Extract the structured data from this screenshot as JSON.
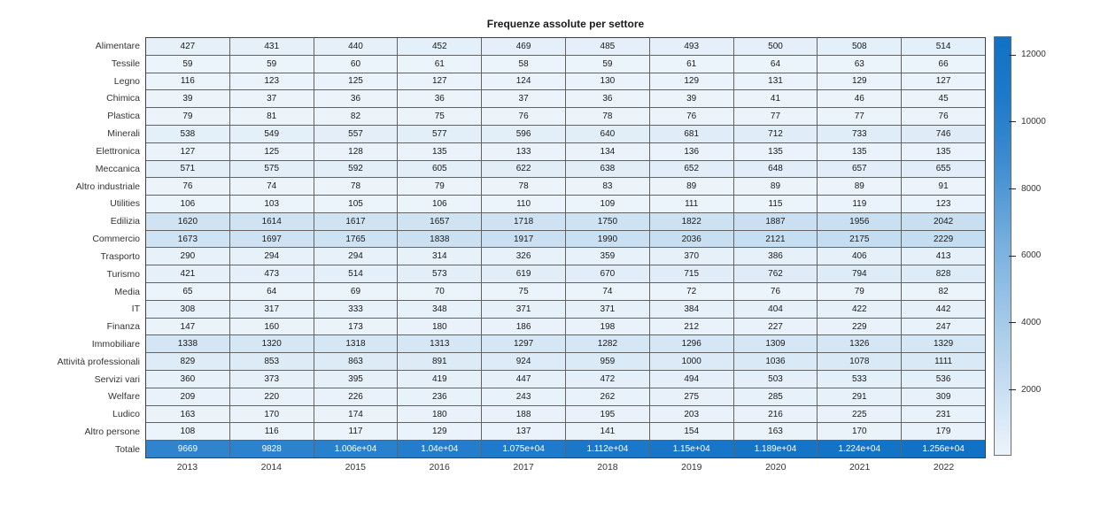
{
  "chart_data": {
    "type": "heatmap",
    "title": "Frequenze assolute per settore",
    "x_categories": [
      "2013",
      "2014",
      "2015",
      "2016",
      "2017",
      "2018",
      "2019",
      "2020",
      "2021",
      "2022"
    ],
    "rows": [
      {
        "label": "Alimentare",
        "values": [
          427,
          431,
          440,
          452,
          469,
          485,
          493,
          500,
          508,
          514
        ]
      },
      {
        "label": "Tessile",
        "values": [
          59,
          59,
          60,
          61,
          58,
          59,
          61,
          64,
          63,
          66
        ]
      },
      {
        "label": "Legno",
        "values": [
          116,
          123,
          125,
          127,
          124,
          130,
          129,
          131,
          129,
          127
        ]
      },
      {
        "label": "Chimica",
        "values": [
          39,
          37,
          36,
          36,
          37,
          36,
          39,
          41,
          46,
          45
        ]
      },
      {
        "label": "Plastica",
        "values": [
          79,
          81,
          82,
          75,
          76,
          78,
          76,
          77,
          77,
          76
        ]
      },
      {
        "label": "Minerali",
        "values": [
          538,
          549,
          557,
          577,
          596,
          640,
          681,
          712,
          733,
          746
        ]
      },
      {
        "label": "Elettronica",
        "values": [
          127,
          125,
          128,
          135,
          133,
          134,
          136,
          135,
          135,
          135
        ]
      },
      {
        "label": "Meccanica",
        "values": [
          571,
          575,
          592,
          605,
          622,
          638,
          652,
          648,
          657,
          655
        ]
      },
      {
        "label": "Altro industriale",
        "values": [
          76,
          74,
          78,
          79,
          78,
          83,
          89,
          89,
          89,
          91
        ]
      },
      {
        "label": "Utilities",
        "values": [
          106,
          103,
          105,
          106,
          110,
          109,
          111,
          115,
          119,
          123
        ]
      },
      {
        "label": "Edilizia",
        "values": [
          1620,
          1614,
          1617,
          1657,
          1718,
          1750,
          1822,
          1887,
          1956,
          2042
        ]
      },
      {
        "label": "Commercio",
        "values": [
          1673,
          1697,
          1765,
          1838,
          1917,
          1990,
          2036,
          2121,
          2175,
          2229
        ]
      },
      {
        "label": "Trasporto",
        "values": [
          290,
          294,
          294,
          314,
          326,
          359,
          370,
          386,
          406,
          413
        ]
      },
      {
        "label": "Turismo",
        "values": [
          421,
          473,
          514,
          573,
          619,
          670,
          715,
          762,
          794,
          828
        ]
      },
      {
        "label": "Media",
        "values": [
          65,
          64,
          69,
          70,
          75,
          74,
          72,
          76,
          79,
          82
        ]
      },
      {
        "label": "IT",
        "values": [
          308,
          317,
          333,
          348,
          371,
          371,
          384,
          404,
          422,
          442
        ]
      },
      {
        "label": "Finanza",
        "values": [
          147,
          160,
          173,
          180,
          186,
          198,
          212,
          227,
          229,
          247
        ]
      },
      {
        "label": "Immobiliare",
        "values": [
          1338,
          1320,
          1318,
          1313,
          1297,
          1282,
          1296,
          1309,
          1326,
          1329
        ]
      },
      {
        "label": "Attività professionali",
        "values": [
          829,
          853,
          863,
          891,
          924,
          959,
          1000,
          1036,
          1078,
          1111
        ]
      },
      {
        "label": "Servizi vari",
        "values": [
          360,
          373,
          395,
          419,
          447,
          472,
          494,
          503,
          533,
          536
        ]
      },
      {
        "label": "Welfare",
        "values": [
          209,
          220,
          226,
          236,
          243,
          262,
          275,
          285,
          291,
          309
        ]
      },
      {
        "label": "Ludico",
        "values": [
          163,
          170,
          174,
          180,
          188,
          195,
          203,
          216,
          225,
          231
        ]
      },
      {
        "label": "Altro persone",
        "values": [
          108,
          116,
          117,
          129,
          137,
          141,
          154,
          163,
          170,
          179
        ]
      },
      {
        "label": "Totale",
        "values": [
          9669,
          9828,
          10060,
          10400,
          10750,
          11120,
          11500,
          11890,
          12240,
          12560
        ],
        "display": [
          "9669",
          "9828",
          "1.006e+04",
          "1.04e+04",
          "1.075e+04",
          "1.112e+04",
          "1.15e+04",
          "1.189e+04",
          "1.224e+04",
          "1.256e+04"
        ]
      }
    ],
    "colorbar": {
      "position": "right",
      "cmin": 36,
      "cmax": 12560,
      "tick_values": [
        2000,
        4000,
        6000,
        8000,
        10000,
        12000
      ],
      "tick_labels": [
        "2000",
        "4000",
        "6000",
        "8000",
        "10000",
        "12000"
      ]
    },
    "colormap_stops": [
      {
        "t": 0.0,
        "rgb": [
          236,
          244,
          251
        ]
      },
      {
        "t": 0.15,
        "rgb": [
          202,
          224,
          242
        ]
      },
      {
        "t": 0.3,
        "rgb": [
          168,
          204,
          233
        ]
      },
      {
        "t": 0.5,
        "rgb": [
          120,
          176,
          222
        ]
      },
      {
        "t": 0.7,
        "rgb": [
          62,
          140,
          208
        ]
      },
      {
        "t": 0.85,
        "rgb": [
          30,
          122,
          202
        ]
      },
      {
        "t": 1.0,
        "rgb": [
          17,
          113,
          197
        ]
      }
    ],
    "layout": {
      "grid": "on",
      "legend": "none",
      "x_axis_side": "bottom",
      "y_axis_side": "left"
    }
  }
}
